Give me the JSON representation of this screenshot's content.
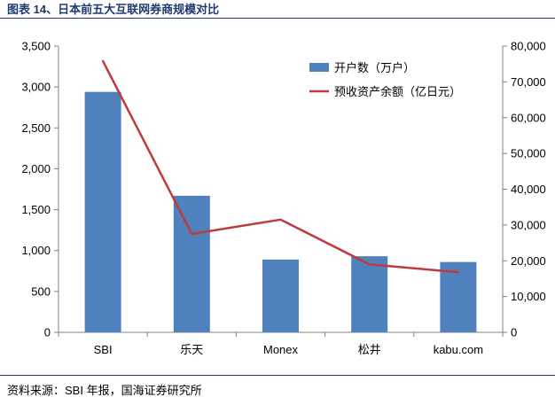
{
  "figure": {
    "title": "图表 14、日本前五大互联网券商规模对比",
    "source": "资料来源：SBI 年报，国海证券研究所"
  },
  "colors": {
    "bar": "#4f81bd",
    "line": "#c0393b",
    "title": "#1f3b6e"
  },
  "chart_data": {
    "type": "bar",
    "categories": [
      "SBI",
      "乐天",
      "Monex",
      "松井",
      "kabu.com"
    ],
    "series": [
      {
        "name": "开户数（万户）",
        "type": "bar",
        "axis": "left",
        "values": [
          2940,
          1670,
          890,
          930,
          860
        ]
      },
      {
        "name": "预收资产余额（亿日元）",
        "type": "line",
        "axis": "right",
        "values": [
          75800,
          27500,
          31500,
          19000,
          16800
        ]
      }
    ],
    "y_left": {
      "ylim": [
        0,
        3500
      ],
      "ticks": [
        0,
        500,
        1000,
        1500,
        2000,
        2500,
        3000,
        3500
      ],
      "tick_labels": [
        "0",
        "500",
        "1,000",
        "1,500",
        "2,000",
        "2,500",
        "3,000",
        "3,500"
      ]
    },
    "y_right": {
      "ylim": [
        0,
        80000
      ],
      "ticks": [
        0,
        10000,
        20000,
        30000,
        40000,
        50000,
        60000,
        70000,
        80000
      ],
      "tick_labels": [
        "0",
        "10,000",
        "20,000",
        "30,000",
        "40,000",
        "50,000",
        "60,000",
        "70,000",
        "80,000"
      ]
    },
    "legend_position": "top-right",
    "grid": false
  }
}
